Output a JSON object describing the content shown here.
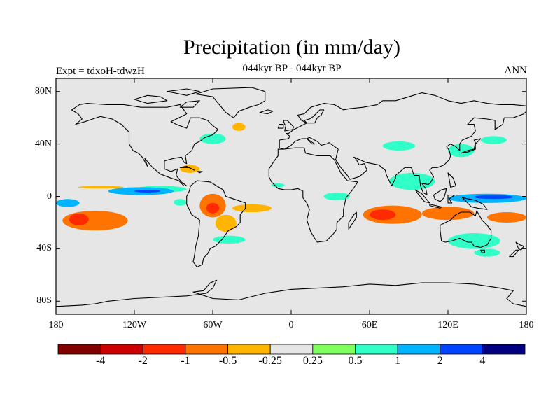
{
  "chart_data": {
    "type": "heatmap",
    "title": "Precipitation (in mm/day)",
    "subtitle": "044kyr BP - 044kyr BP",
    "left_label": "Expt = tdxoH-tdwzH",
    "right_label": "ANN",
    "projection": "cylindrical equidistant",
    "xlim": [
      -180,
      180
    ],
    "ylim": [
      -90,
      90
    ],
    "x_ticks": [
      {
        "value": -180,
        "label": "180"
      },
      {
        "value": -120,
        "label": "120W"
      },
      {
        "value": -60,
        "label": "60W"
      },
      {
        "value": 0,
        "label": "0"
      },
      {
        "value": 60,
        "label": "60E"
      },
      {
        "value": 120,
        "label": "120E"
      },
      {
        "value": 180,
        "label": "180"
      }
    ],
    "y_ticks": [
      {
        "value": 80,
        "label": "80N"
      },
      {
        "value": 40,
        "label": "40N"
      },
      {
        "value": 0,
        "label": "0"
      },
      {
        "value": -40,
        "label": "40S"
      },
      {
        "value": -80,
        "label": "80S"
      }
    ],
    "background_color": "#e6e6e6",
    "colorbar": {
      "colors": [
        "#800000",
        "#cc0000",
        "#ff2a00",
        "#ff7300",
        "#ffb400",
        "#e6e6e6",
        "#80ff60",
        "#30ffc8",
        "#00b4ff",
        "#0044ff",
        "#000080"
      ],
      "labels": [
        "-4",
        "-2",
        "-1",
        "-0.5",
        "-0.25",
        "0.25",
        "0.5",
        "1",
        "2",
        "4"
      ]
    },
    "anomaly_regions": [
      {
        "lon": [
          -163,
          -128
        ],
        "lat": [
          6,
          8
        ],
        "level": "-0.25"
      },
      {
        "lon": [
          -175,
          -125
        ],
        "lat": [
          -26,
          -11
        ],
        "level": "-0.5"
      },
      {
        "lon": [
          -170,
          -155
        ],
        "lat": [
          -22,
          -13
        ],
        "level": "-1"
      },
      {
        "lon": [
          -120,
          -80
        ],
        "lat": [
          3,
          8
        ],
        "level": "0.5"
      },
      {
        "lon": [
          -140,
          -90
        ],
        "lat": [
          1,
          7
        ],
        "level": "1"
      },
      {
        "lon": [
          -120,
          -100
        ],
        "lat": [
          3,
          5
        ],
        "level": "2"
      },
      {
        "lon": [
          -180,
          -162
        ],
        "lat": [
          -8,
          -2
        ],
        "level": "1"
      },
      {
        "lon": [
          -90,
          -80
        ],
        "lat": [
          -7,
          -2
        ],
        "level": "0.5"
      },
      {
        "lon": [
          -70,
          -50
        ],
        "lat": [
          -16,
          2
        ],
        "level": "-0.5"
      },
      {
        "lon": [
          -65,
          -55
        ],
        "lat": [
          -13,
          -5
        ],
        "level": "-1"
      },
      {
        "lon": [
          -45,
          -15
        ],
        "lat": [
          -12,
          -6
        ],
        "level": "-0.25"
      },
      {
        "lon": [
          -58,
          -42
        ],
        "lat": [
          -27,
          -14
        ],
        "level": "-0.25"
      },
      {
        "lon": [
          -60,
          -35
        ],
        "lat": [
          -36,
          -30
        ],
        "level": "0.5"
      },
      {
        "lon": [
          -85,
          -70
        ],
        "lat": [
          18,
          24
        ],
        "level": "-0.25"
      },
      {
        "lon": [
          -70,
          -50
        ],
        "lat": [
          40,
          48
        ],
        "level": "0.5"
      },
      {
        "lon": [
          -45,
          -35
        ],
        "lat": [
          50,
          56
        ],
        "level": "-0.25"
      },
      {
        "lon": [
          -15,
          -5
        ],
        "lat": [
          7,
          10
        ],
        "level": "0.5"
      },
      {
        "lon": [
          25,
          45
        ],
        "lat": [
          -3,
          3
        ],
        "level": "0.5"
      },
      {
        "lon": [
          55,
          100
        ],
        "lat": [
          -21,
          -7
        ],
        "level": "-0.5"
      },
      {
        "lon": [
          60,
          80
        ],
        "lat": [
          -18,
          -10
        ],
        "level": "-1"
      },
      {
        "lon": [
          100,
          140
        ],
        "lat": [
          -18,
          -8
        ],
        "level": "-0.5"
      },
      {
        "lon": [
          150,
          180
        ],
        "lat": [
          -20,
          -12
        ],
        "level": "-0.5"
      },
      {
        "lon": [
          120,
          180
        ],
        "lat": [
          -5,
          2
        ],
        "level": "1"
      },
      {
        "lon": [
          140,
          170
        ],
        "lat": [
          -2,
          1
        ],
        "level": "2"
      },
      {
        "lon": [
          75,
          110
        ],
        "lat": [
          5,
          18
        ],
        "level": "0.5"
      },
      {
        "lon": [
          120,
          140
        ],
        "lat": [
          30,
          40
        ],
        "level": "0.5"
      },
      {
        "lon": [
          145,
          165
        ],
        "lat": [
          40,
          46
        ],
        "level": "0.5"
      },
      {
        "lon": [
          70,
          95
        ],
        "lat": [
          35,
          42
        ],
        "level": "0.5"
      },
      {
        "lon": [
          120,
          160
        ],
        "lat": [
          -40,
          -28
        ],
        "level": "0.5"
      },
      {
        "lon": [
          140,
          160
        ],
        "lat": [
          -46,
          -40
        ],
        "level": "0.5"
      }
    ]
  }
}
